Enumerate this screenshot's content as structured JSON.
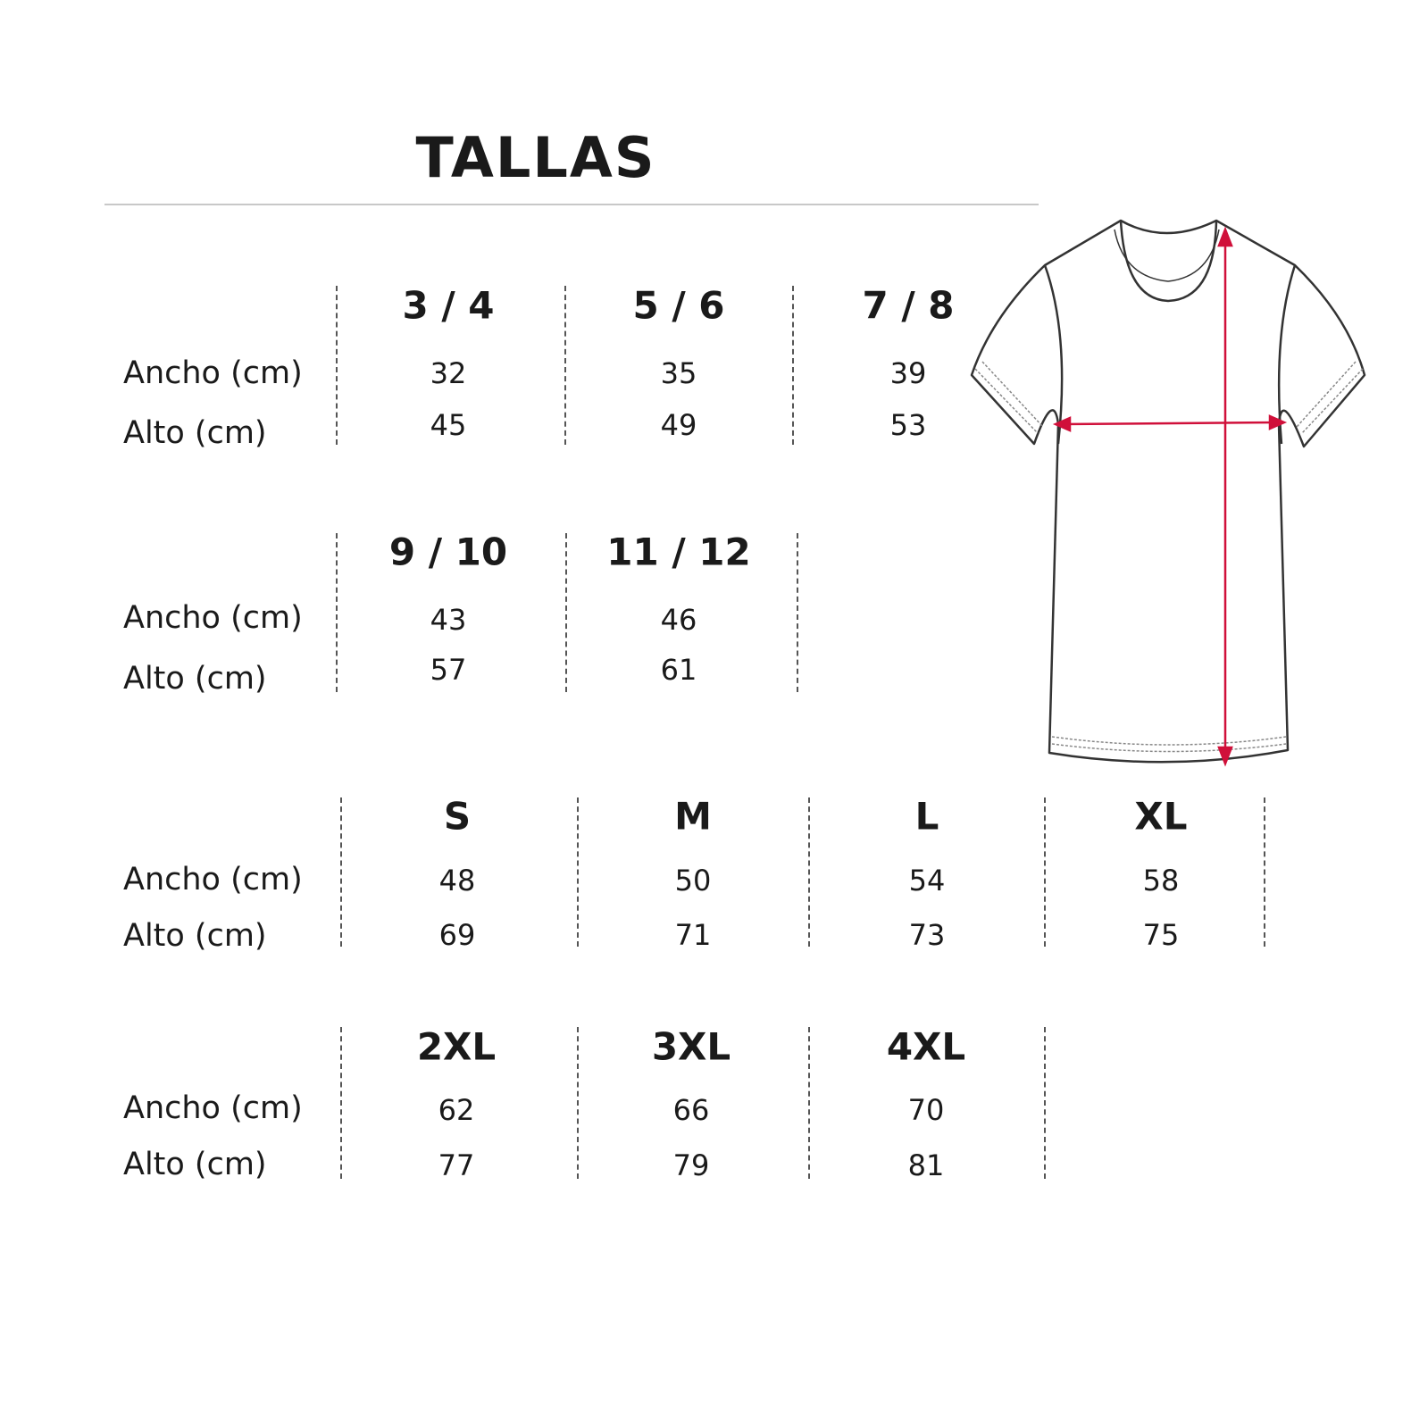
{
  "title": "TALLAS",
  "row_labels": {
    "width": "Ancho (cm)",
    "height": "Alto (cm)"
  },
  "accent_color": "#d0103a",
  "illustration": "t-shirt-measurement-diagram",
  "groups": [
    {
      "sizes": [
        {
          "name": "3 / 4",
          "ancho": "32",
          "alto": "45"
        },
        {
          "name": "5 / 6",
          "ancho": "35",
          "alto": "49"
        },
        {
          "name": "7 / 8",
          "ancho": "39",
          "alto": "53"
        }
      ]
    },
    {
      "sizes": [
        {
          "name": "9 / 10",
          "ancho": "43",
          "alto": "57"
        },
        {
          "name": "11 / 12",
          "ancho": "46",
          "alto": "61"
        }
      ]
    },
    {
      "sizes": [
        {
          "name": "S",
          "ancho": "48",
          "alto": "69"
        },
        {
          "name": "M",
          "ancho": "50",
          "alto": "71"
        },
        {
          "name": "L",
          "ancho": "54",
          "alto": "73"
        },
        {
          "name": "XL",
          "ancho": "58",
          "alto": "75"
        }
      ]
    },
    {
      "sizes": [
        {
          "name": "2XL",
          "ancho": "62",
          "alto": "77"
        },
        {
          "name": "3XL",
          "ancho": "66",
          "alto": "79"
        },
        {
          "name": "4XL",
          "ancho": "70",
          "alto": "81"
        }
      ]
    }
  ]
}
